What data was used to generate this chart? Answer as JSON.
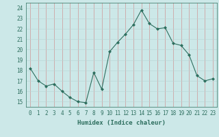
{
  "x": [
    0,
    1,
    2,
    3,
    4,
    5,
    6,
    7,
    8,
    9,
    10,
    11,
    12,
    13,
    14,
    15,
    16,
    17,
    18,
    19,
    20,
    21,
    22,
    23
  ],
  "y": [
    18.2,
    17.0,
    16.5,
    16.7,
    16.0,
    15.4,
    15.0,
    14.9,
    17.8,
    16.2,
    19.8,
    20.7,
    21.5,
    22.4,
    23.8,
    22.5,
    22.0,
    22.1,
    20.6,
    20.4,
    19.5,
    17.5,
    17.0,
    17.2
  ],
  "line_color": "#2d6e5e",
  "marker": "D",
  "marker_size": 2,
  "bg_color": "#cce8e8",
  "grid_color_major": "#e8a0a0",
  "grid_color_minor": "#d4d4d4",
  "xlabel": "Humidex (Indice chaleur)",
  "ylim": [
    14.5,
    24.5
  ],
  "xlim": [
    -0.5,
    23.5
  ],
  "yticks": [
    15,
    16,
    17,
    18,
    19,
    20,
    21,
    22,
    23,
    24
  ],
  "xticks": [
    0,
    1,
    2,
    3,
    4,
    5,
    6,
    7,
    8,
    9,
    10,
    11,
    12,
    13,
    14,
    15,
    16,
    17,
    18,
    19,
    20,
    21,
    22,
    23
  ],
  "font_color": "#2d6e5e",
  "label_fontsize": 6.5,
  "tick_fontsize": 5.5,
  "linewidth": 0.8
}
